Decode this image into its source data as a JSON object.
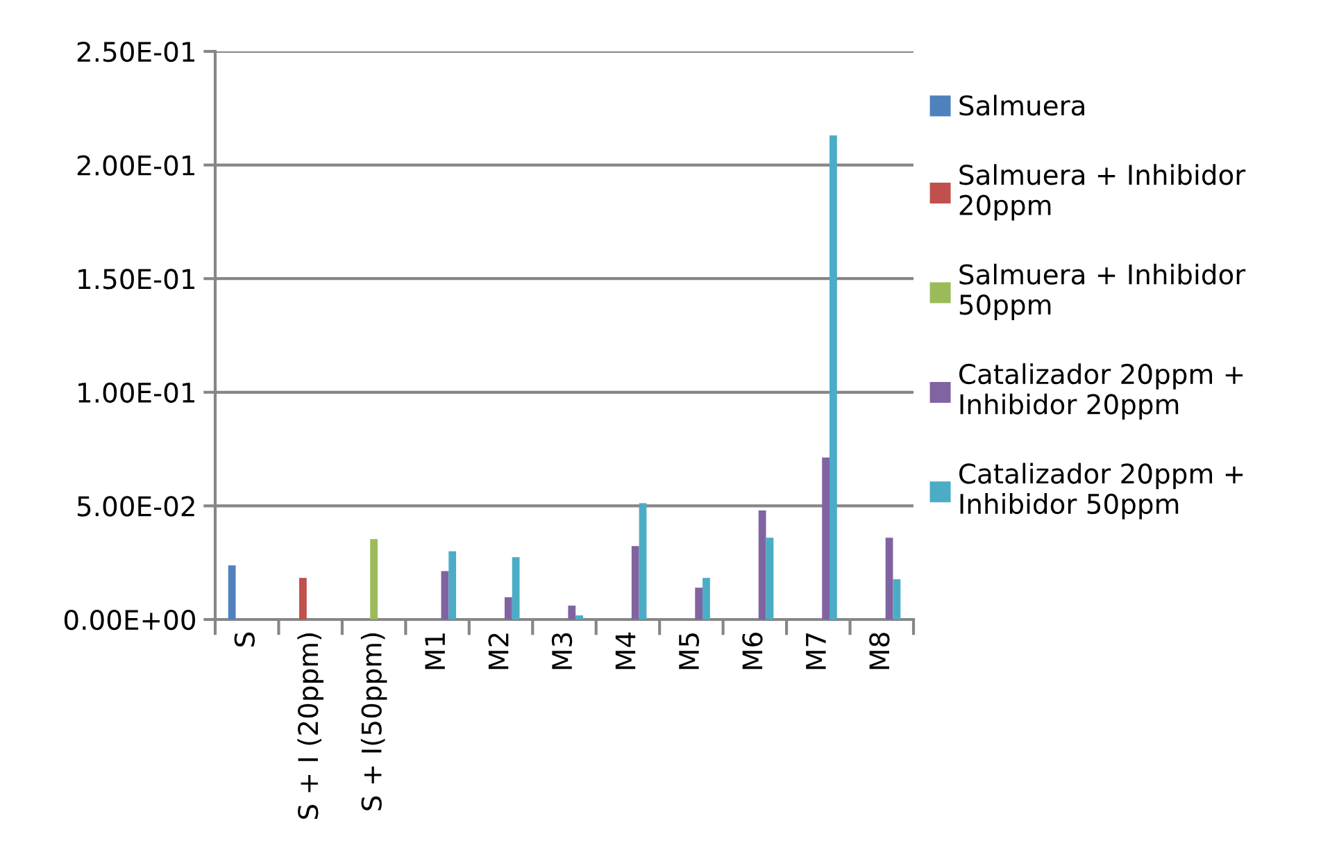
{
  "chart_data": {
    "type": "bar",
    "categories": [
      "S",
      "S + I (20ppm)",
      "S + I(50ppm)",
      "M1",
      "M2",
      "M3",
      "M4",
      "M5",
      "M6",
      "M7",
      "M8"
    ],
    "series": [
      {
        "name": "Salmuera",
        "color": "#4f81bd",
        "values": [
          0.0238,
          null,
          null,
          null,
          null,
          null,
          null,
          null,
          null,
          null,
          null
        ]
      },
      {
        "name": "Salmuera + Inhibidor 20ppm",
        "color": "#c0504d",
        "values": [
          null,
          0.0183,
          null,
          null,
          null,
          null,
          null,
          null,
          null,
          null,
          null
        ]
      },
      {
        "name": "Salmuera + Inhibidor 50ppm",
        "color": "#9bbb59",
        "values": [
          null,
          null,
          0.0354,
          null,
          null,
          null,
          null,
          null,
          null,
          null,
          null
        ]
      },
      {
        "name": "Catalizador 20ppm + Inhibidor 20ppm",
        "color": "#8064a2",
        "values": [
          null,
          null,
          null,
          0.0213,
          0.0098,
          0.0061,
          0.0323,
          0.014,
          0.048,
          0.0713,
          0.036
        ]
      },
      {
        "name": "Catalizador 20ppm + Inhibidor 50ppm",
        "color": "#4bacc6",
        "values": [
          null,
          null,
          null,
          0.03,
          0.0274,
          0.0018,
          0.0512,
          0.0183,
          0.036,
          0.213,
          0.0177
        ]
      }
    ],
    "ylim": [
      0,
      0.25
    ],
    "yticks": [
      {
        "value": 0,
        "label": "0.00E+00"
      },
      {
        "value": 0.05,
        "label": "5.00E-02"
      },
      {
        "value": 0.1,
        "label": "1.00E-01"
      },
      {
        "value": 0.15,
        "label": "1.50E-01"
      },
      {
        "value": 0.2,
        "label": "2.00E-01"
      },
      {
        "value": 0.25,
        "label": "2.50E-01"
      }
    ],
    "grid": "y",
    "legend": "right"
  }
}
